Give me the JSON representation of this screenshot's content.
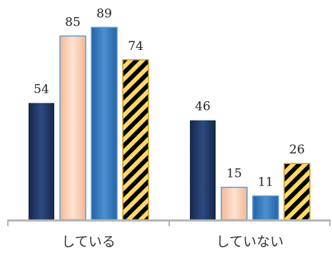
{
  "chart_data": {
    "type": "bar",
    "title": "",
    "xlabel": "",
    "ylabel": "",
    "categories": [
      "している",
      "していない"
    ],
    "series": [
      {
        "values": [
          54,
          46
        ],
        "fill": "#1f3864",
        "style": "gradient-navy"
      },
      {
        "values": [
          85,
          15
        ],
        "fill": "#f8cbad",
        "style": "gradient-peach"
      },
      {
        "values": [
          89,
          11
        ],
        "fill": "#2e75b6",
        "style": "gradient-blue"
      },
      {
        "values": [
          74,
          26
        ],
        "fill": "#ffd966",
        "style": "hatched-black-gold"
      }
    ],
    "ylim": [
      0,
      100
    ],
    "grid": false,
    "legend": "none",
    "colors": {
      "axis": "#b4b4b4",
      "navy": "#1f3864",
      "peach": "#f8cbad",
      "blue": "#2e75b6",
      "gold": "#ffd966",
      "hatch": "#000000"
    }
  }
}
